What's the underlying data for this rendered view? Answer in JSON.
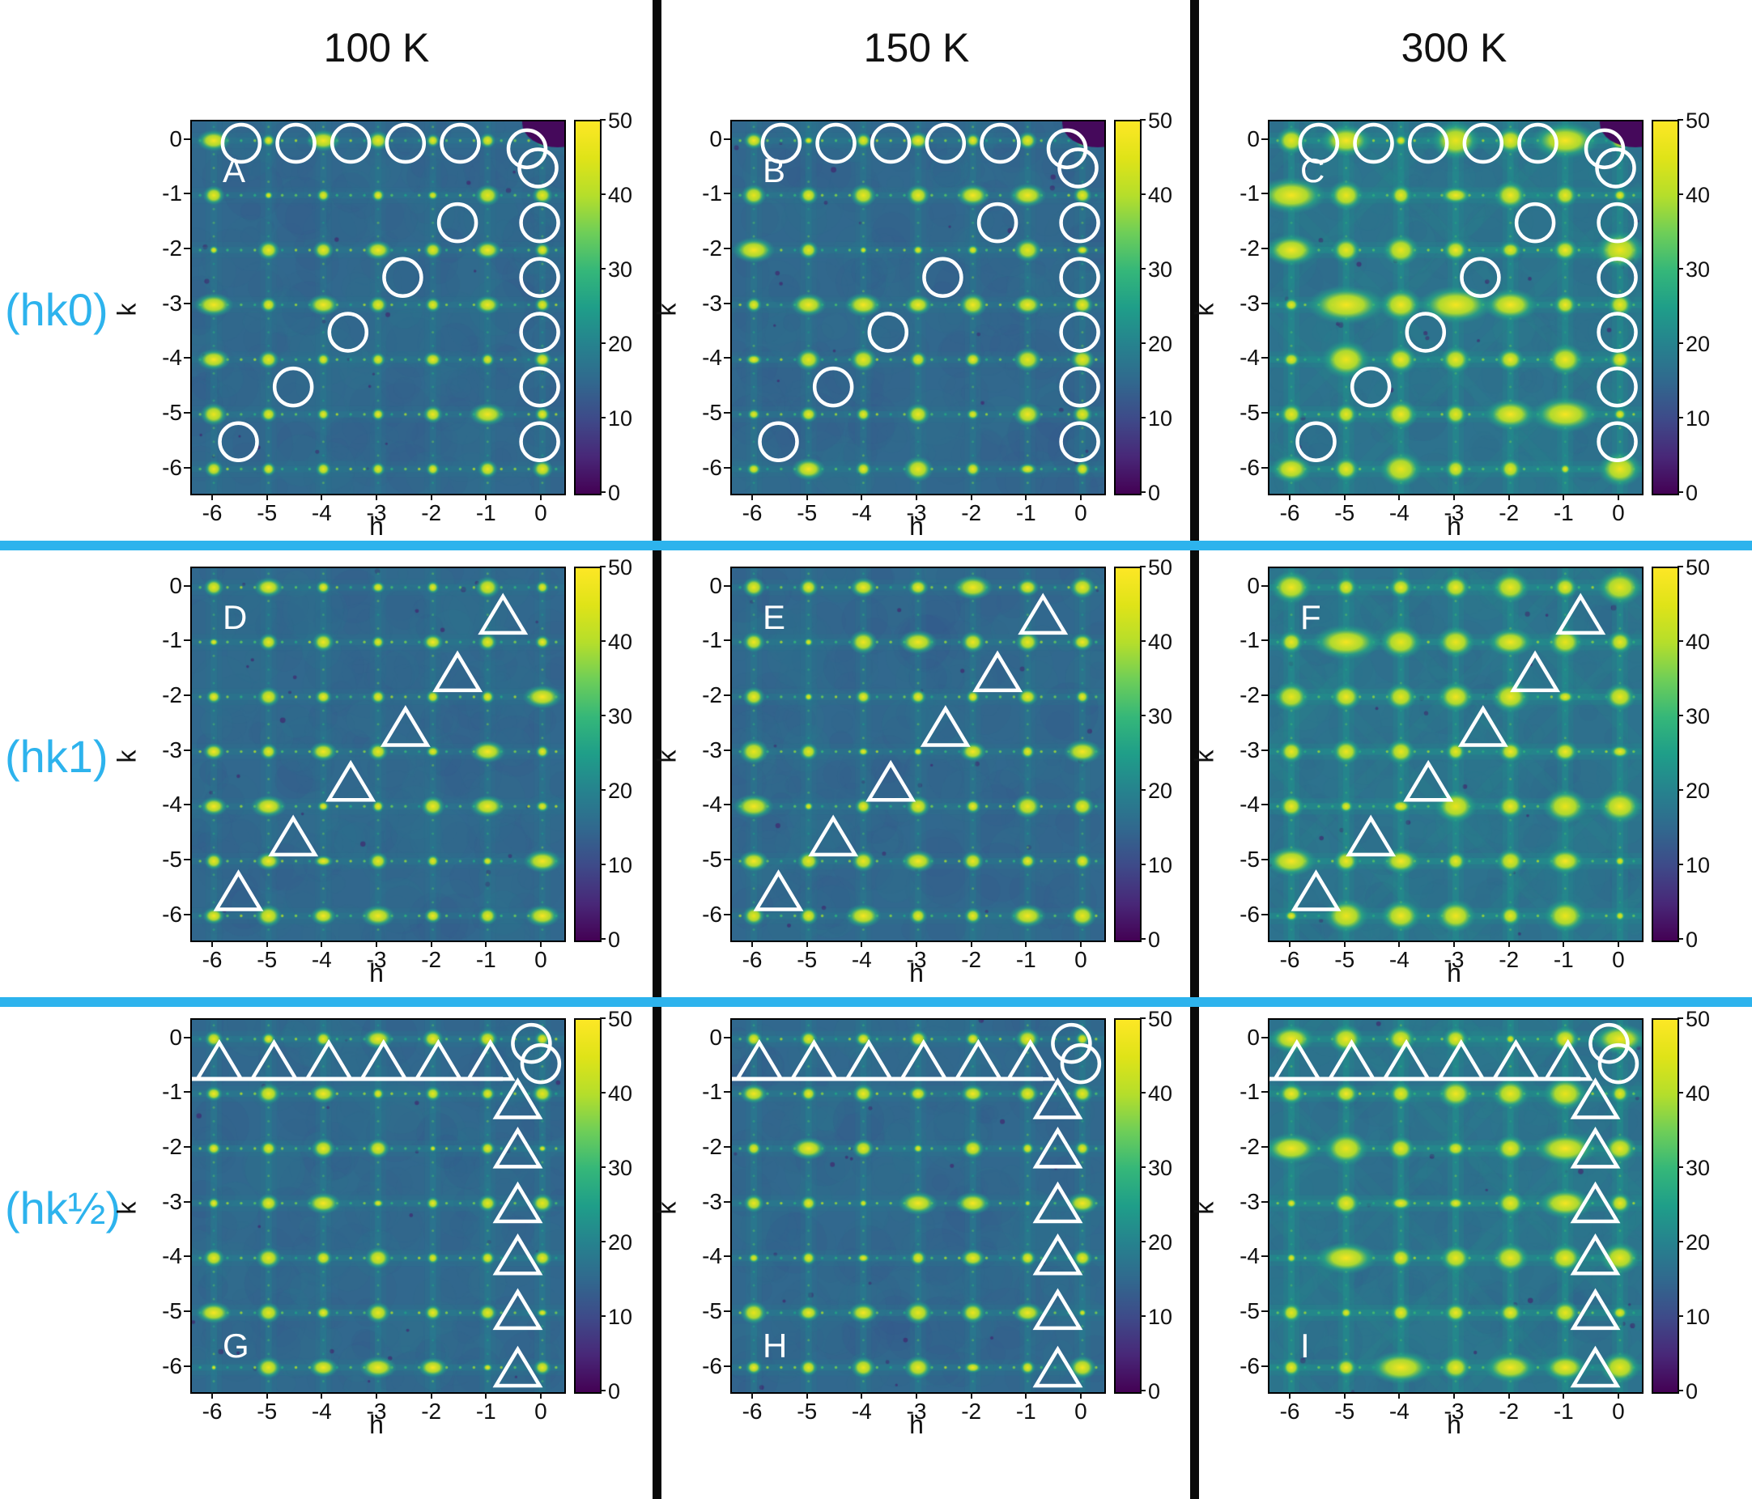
{
  "figure": {
    "columns": [
      {
        "title": "100 K"
      },
      {
        "title": "150 K"
      },
      {
        "title": "300 K"
      }
    ],
    "rows": [
      {
        "label": "(hk0)"
      },
      {
        "label": "(hk1)"
      },
      {
        "label": "(hk½)"
      }
    ],
    "axes": {
      "x_label": "h",
      "y_label": "k",
      "x_ticks": [
        "-6",
        "-5",
        "-4",
        "-3",
        "-2",
        "-1",
        "0"
      ],
      "y_ticks": [
        "0",
        "-1",
        "-2",
        "-3",
        "-4",
        "-5",
        "-6"
      ],
      "colorbar_ticks": [
        "50",
        "40",
        "30",
        "20",
        "10",
        "0"
      ]
    },
    "accent_color": "#2db3ed",
    "divider_color": "#0a0a0a",
    "marker_color": "#ffffff"
  },
  "chart_data": {
    "type": "heatmap",
    "description": "3x3 grid of single-crystal diffraction reciprocal-space intensity maps. Columns are temperatures (100 K, 150 K, 300 K); rows are reciprocal-lattice planes (hk0), (hk1), (hk1/2). Bright Bragg peaks sit at integer (h,k) positions on a teal diffuse background; white circles and triangles mark half-order superstructure positions; peak size and diffuse scattering grow with temperature.",
    "x_label": "h",
    "y_label": "k",
    "x_range": [
      -6.4,
      0.4
    ],
    "y_range": [
      -6.45,
      0.35
    ],
    "x_ticks": [
      -6,
      -5,
      -4,
      -3,
      -2,
      -1,
      0
    ],
    "y_ticks": [
      0,
      -1,
      -2,
      -3,
      -4,
      -5,
      -6
    ],
    "color_scale": {
      "colormap": "viridis",
      "min": 0,
      "max": 50,
      "ticks": [
        50,
        40,
        30,
        20,
        10,
        0
      ]
    },
    "peak_positions": "integer (h,k) for h = -6..0, k = -6..0",
    "marker_sets": {
      "hk0": {
        "circles": [
          [
            -5.5,
            -0.05
          ],
          [
            -4.5,
            -0.05
          ],
          [
            -3.5,
            -0.05
          ],
          [
            -2.5,
            -0.05
          ],
          [
            -1.5,
            -0.05
          ],
          [
            -0.28,
            -0.15
          ],
          [
            -0.08,
            -0.5
          ],
          [
            -1.55,
            -1.5
          ],
          [
            -2.55,
            -2.5
          ],
          [
            -3.55,
            -3.5
          ],
          [
            -4.55,
            -4.5
          ],
          [
            -5.55,
            -5.5
          ],
          [
            -0.05,
            -1.5
          ],
          [
            -0.05,
            -2.5
          ],
          [
            -0.05,
            -3.5
          ],
          [
            -0.05,
            -4.5
          ],
          [
            -0.05,
            -5.5
          ]
        ]
      },
      "hk1": {
        "triangles": [
          [
            -0.72,
            -0.55
          ],
          [
            -1.55,
            -1.6
          ],
          [
            -2.5,
            -2.6
          ],
          [
            -3.5,
            -3.6
          ],
          [
            -4.55,
            -4.6
          ],
          [
            -5.55,
            -5.6
          ]
        ]
      },
      "hkhalf": {
        "triangles_top": [
          [
            -5.9,
            -0.45
          ],
          [
            -4.9,
            -0.45
          ],
          [
            -3.9,
            -0.45
          ],
          [
            -2.9,
            -0.45
          ],
          [
            -1.9,
            -0.45
          ],
          [
            -0.95,
            -0.45
          ]
        ],
        "triangles_right": [
          [
            -0.45,
            -1.15
          ],
          [
            -0.45,
            -2.05
          ],
          [
            -0.45,
            -3.05
          ],
          [
            -0.45,
            -4.0
          ],
          [
            -0.45,
            -5.0
          ],
          [
            -0.45,
            -6.05
          ]
        ],
        "circles": [
          [
            -0.2,
            -0.08
          ],
          [
            -0.03,
            -0.45
          ]
        ],
        "line": {
          "k": -0.73,
          "h_from": -6.4,
          "h_to": -0.72
        }
      }
    },
    "panels": [
      {
        "letter": "A",
        "row": 0,
        "col": 0,
        "plane": "(hk0)",
        "temperature": "100 K",
        "marker_set": "hk0",
        "letter_corner": "top-left",
        "peak_size": 1.0,
        "diffuse": 0.3
      },
      {
        "letter": "B",
        "row": 0,
        "col": 1,
        "plane": "(hk0)",
        "temperature": "150 K",
        "marker_set": "hk0",
        "letter_corner": "top-left",
        "peak_size": 1.1,
        "diffuse": 0.35
      },
      {
        "letter": "C",
        "row": 0,
        "col": 2,
        "plane": "(hk0)",
        "temperature": "300 K",
        "marker_set": "hk0",
        "letter_corner": "top-left",
        "peak_size": 1.65,
        "diffuse": 0.6
      },
      {
        "letter": "D",
        "row": 1,
        "col": 0,
        "plane": "(hk1)",
        "temperature": "100 K",
        "marker_set": "hk1",
        "letter_corner": "top-left",
        "peak_size": 1.0,
        "diffuse": 0.3
      },
      {
        "letter": "E",
        "row": 1,
        "col": 1,
        "plane": "(hk1)",
        "temperature": "150 K",
        "marker_set": "hk1",
        "letter_corner": "top-left",
        "peak_size": 1.08,
        "diffuse": 0.35
      },
      {
        "letter": "F",
        "row": 1,
        "col": 2,
        "plane": "(hk1)",
        "temperature": "300 K",
        "marker_set": "hk1",
        "letter_corner": "top-left",
        "peak_size": 1.5,
        "diffuse": 0.6
      },
      {
        "letter": "G",
        "row": 2,
        "col": 0,
        "plane": "(hk½)",
        "temperature": "100 K",
        "marker_set": "hkhalf",
        "letter_corner": "bottom-left",
        "peak_size": 0.95,
        "diffuse": 0.42
      },
      {
        "letter": "H",
        "row": 2,
        "col": 1,
        "plane": "(hk½)",
        "temperature": "150 K",
        "marker_set": "hkhalf",
        "letter_corner": "bottom-left",
        "peak_size": 1.0,
        "diffuse": 0.42
      },
      {
        "letter": "I",
        "row": 2,
        "col": 2,
        "plane": "(hk½)",
        "temperature": "300 K",
        "marker_set": "hkhalf",
        "letter_corner": "bottom-left",
        "peak_size": 1.45,
        "diffuse": 0.65
      }
    ]
  }
}
